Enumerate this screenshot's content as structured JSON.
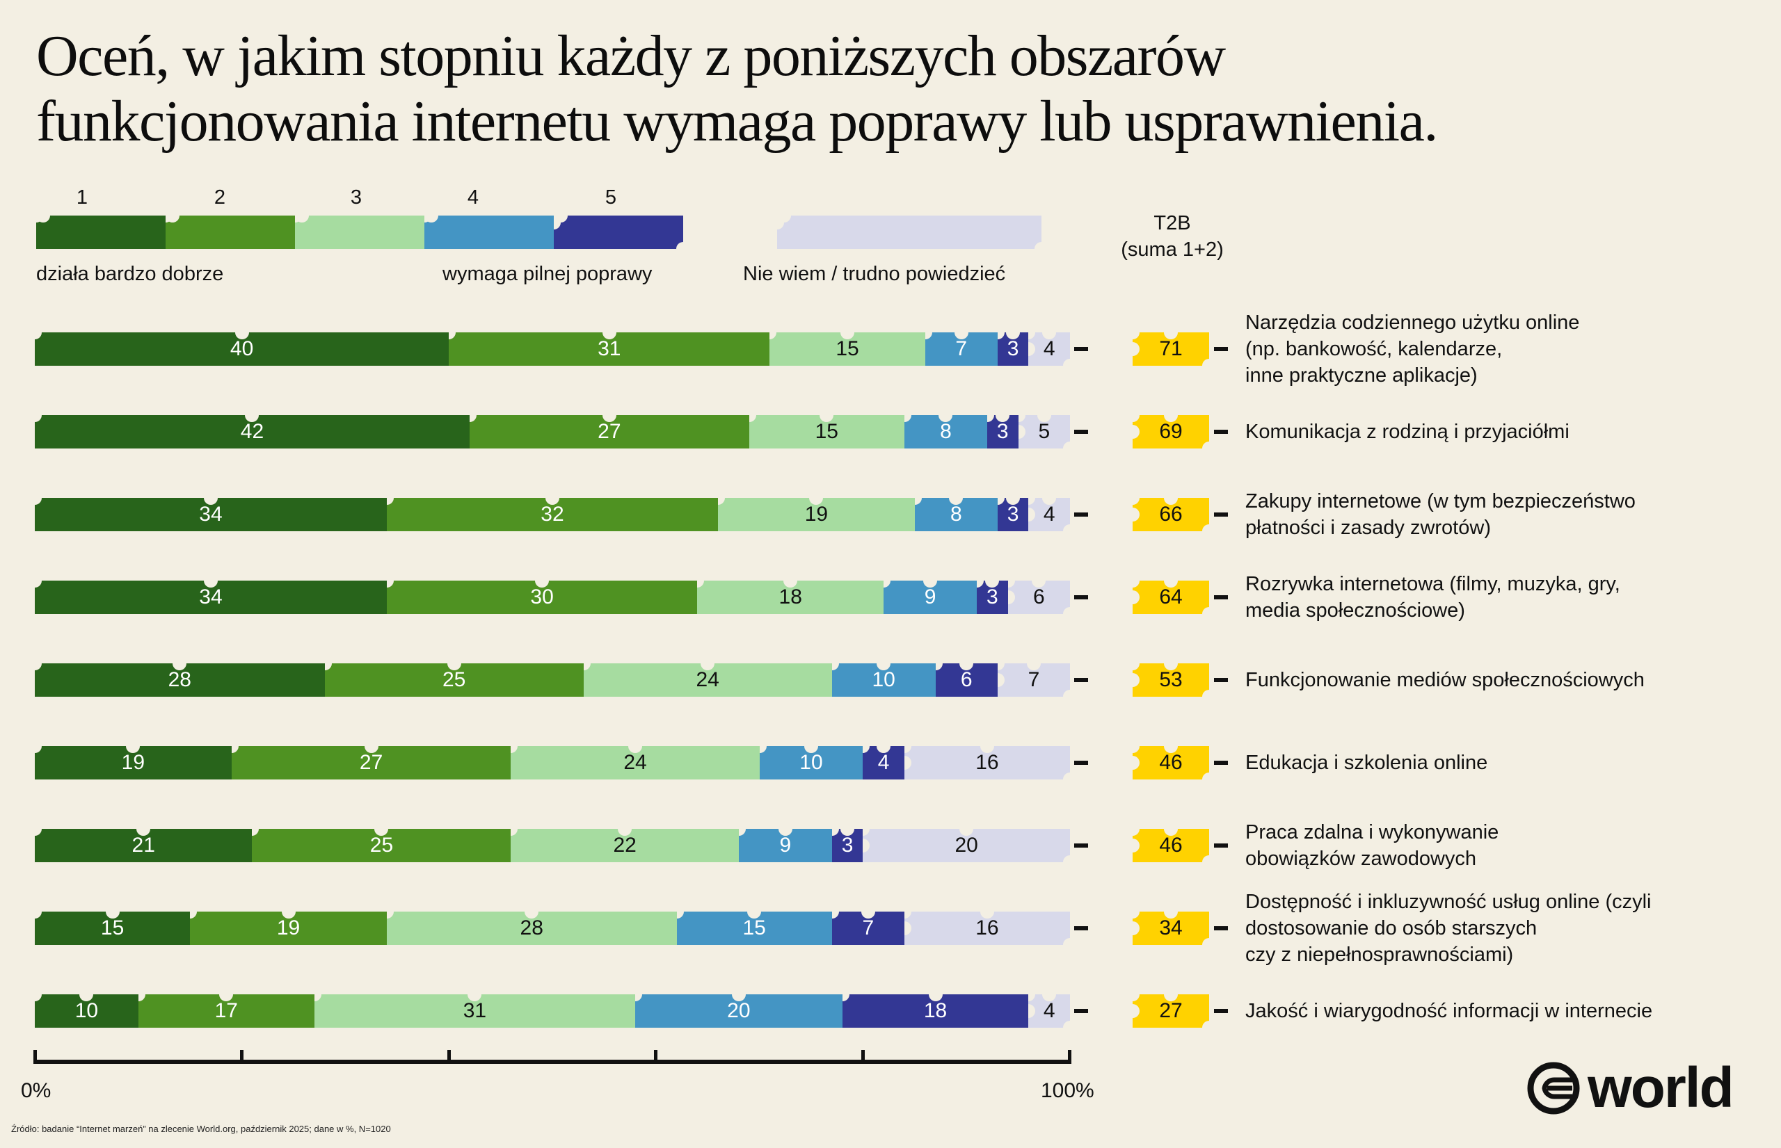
{
  "title_line1": "Oceń, w jakim stopniu każdy z poniższych obszarów",
  "title_line2": "funkcjonowania internetu wymaga poprawy lub usprawnienia.",
  "legend": {
    "scale_labels": [
      "1",
      "2",
      "3",
      "4",
      "5"
    ],
    "left_label": "działa bardzo dobrze",
    "right_label": "wymaga pilnej poprawy",
    "dont_know_label": "Nie wiem / trudno powiedzieć"
  },
  "t2b_header": {
    "line1": "T2B",
    "line2": "(suma 1+2)"
  },
  "colors": {
    "c1": "#28641b",
    "c2": "#4f9222",
    "c3": "#a6dca0",
    "c4": "#4495c4",
    "c5": "#333794",
    "dk": "#d8d9ea",
    "t2b": "#ffd200",
    "bg": "#f3efe3"
  },
  "axis": {
    "min_label": "0%",
    "max_label": "100%"
  },
  "source": "Źródło: badanie “Internet marzeń” na zlecenie World.org, październik 2025; dane w %, N=1020",
  "logo": {
    "text": "world"
  },
  "chart_data": {
    "type": "bar",
    "orientation": "horizontal-stacked-100",
    "title": "Oceń, w jakim stopniu każdy z poniższych obszarów funkcjonowania internetu wymaga poprawy lub usprawnienia.",
    "xlabel": "",
    "ylabel": "",
    "xlim": [
      0,
      100
    ],
    "x_tick_labels": [
      "0%",
      "100%"
    ],
    "grid": false,
    "legend_position": "top",
    "series_names": [
      "1",
      "2",
      "3",
      "4",
      "5",
      "Nie wiem / trudno powiedzieć"
    ],
    "categories": [
      "Narzędzia codziennego użytku online (np. bankowość, kalendarze, inne praktyczne aplikacje)",
      "Komunikacja z rodziną i przyjaciółmi",
      "Zakupy internetowe (w tym bezpieczeństwo płatności i zasady zwrotów)",
      "Rozrywka internetowa (filmy, muzyka, gry, media społecznościowe)",
      "Funkcjonowanie mediów społecznościowych",
      "Edukacja i szkolenia online",
      "Praca zdalna i wykonywanie obowiązków zawodowych",
      "Dostępność i inkluzywność usług online (czyli dostosowanie do osób starszych czy z niepełnosprawnościami)",
      "Jakość i wiarygodność informacji w internecie"
    ],
    "category_label_lines": [
      [
        "Narzędzia codziennego użytku online",
        "(np. bankowość, kalendarze,",
        "inne praktyczne aplikacje)"
      ],
      [
        "Komunikacja z rodziną i przyjaciółmi"
      ],
      [
        "Zakupy internetowe (w tym bezpieczeństwo",
        "płatności i zasady zwrotów)"
      ],
      [
        "Rozrywka internetowa (filmy, muzyka, gry,",
        "media społecznościowe)"
      ],
      [
        "Funkcjonowanie mediów społecznościowych"
      ],
      [
        "Edukacja i szkolenia online"
      ],
      [
        "Praca zdalna i wykonywanie",
        "obowiązków zawodowych"
      ],
      [
        "Dostępność i inkluzywność usług online (czyli",
        "dostosowanie do osób starszych",
        "czy z niepełnosprawnościami)"
      ],
      [
        "Jakość i wiarygodność informacji w internecie"
      ]
    ],
    "rows": [
      [
        40,
        31,
        15,
        7,
        3,
        4
      ],
      [
        42,
        27,
        15,
        8,
        3,
        5
      ],
      [
        34,
        32,
        19,
        8,
        3,
        4
      ],
      [
        34,
        30,
        18,
        9,
        3,
        6
      ],
      [
        28,
        25,
        24,
        10,
        6,
        7
      ],
      [
        19,
        27,
        24,
        10,
        4,
        16
      ],
      [
        21,
        25,
        22,
        9,
        3,
        20
      ],
      [
        15,
        19,
        28,
        15,
        7,
        16
      ],
      [
        10,
        17,
        31,
        20,
        18,
        4
      ]
    ],
    "t2b": [
      71,
      69,
      66,
      64,
      53,
      46,
      46,
      34,
      27
    ]
  }
}
